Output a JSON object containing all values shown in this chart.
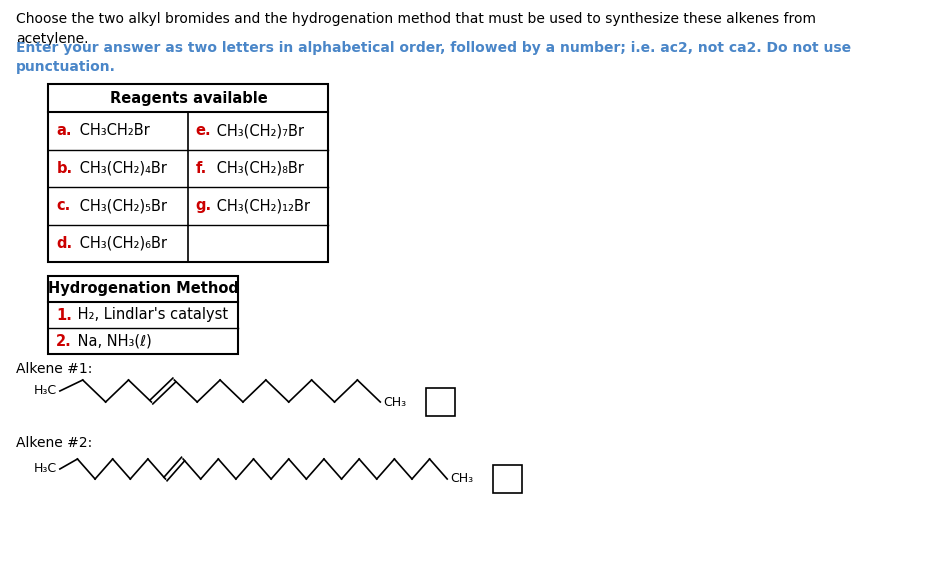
{
  "bg_color": "#ffffff",
  "text_color": "#000000",
  "red_color": "#cc0000",
  "blue_color": "#4a86c8",
  "intro_text": "Choose the two alkyl bromides and the hydrogenation method that must be used to synthesize these alkenes from\nacetylene.",
  "instruction_text": "Enter your answer as two letters in alphabetical order, followed by a number; i.e. ac2, not ca2. Do not use\npunctuation.",
  "reagents_title": "Reagents available",
  "reagents_left_letters": [
    "a.",
    "b.",
    "c.",
    "d."
  ],
  "reagents_left_formulas": [
    " CH₃CH₂Br",
    " CH₃(CH₂)₄Br",
    " CH₃(CH₂)₅Br",
    " CH₃(CH₂)₆Br"
  ],
  "reagents_right_letters": [
    "e.",
    "f.",
    "g."
  ],
  "reagents_right_formulas": [
    " CH₃(CH₂)₇Br",
    " CH₃(CH₂)₈Br",
    " CH₃(CH₂)₁₂Br"
  ],
  "hydro_title": "Hydrogenation Method",
  "hydro_numbers": [
    "1.",
    "2."
  ],
  "hydro_formulas": [
    " H₂, Lindlar's catalyst",
    " Na, NH₃(ℓ)"
  ],
  "alkene1_label": "Alkene #1:",
  "alkene2_label": "Alkene #2:",
  "alkene1_left": "H₃C",
  "alkene1_right": "CH₃",
  "alkene2_left": "H₃C",
  "alkene2_right": "CH₃",
  "line_color": "#000000",
  "lw": 1.2
}
